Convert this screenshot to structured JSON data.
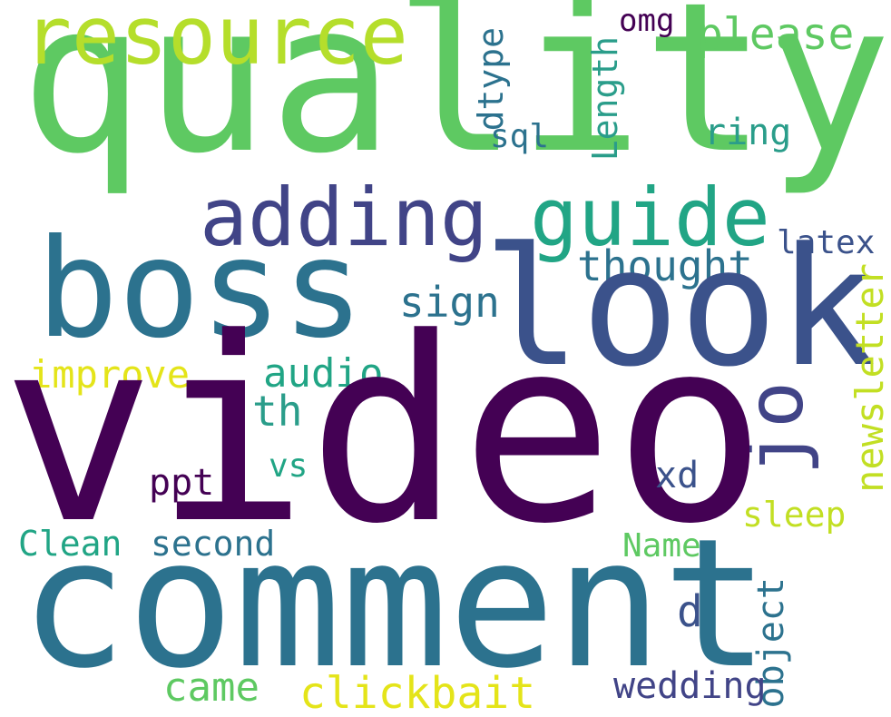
{
  "words": {
    "quality": {
      "text": "quality",
      "color": "#5ec962"
    },
    "video": {
      "text": "video",
      "color": "#440154"
    },
    "comment": {
      "text": "comment",
      "color": "#2c728e"
    },
    "boss": {
      "text": "boss",
      "color": "#2c728e"
    },
    "look": {
      "text": "look",
      "color": "#3b528b"
    },
    "resource": {
      "text": "resource",
      "color": "#b5de2b"
    },
    "adding": {
      "text": "adding",
      "color": "#414487"
    },
    "guide": {
      "text": "guide",
      "color": "#21a585"
    },
    "thought": {
      "text": "thought",
      "color": "#2c728e"
    },
    "sign": {
      "text": "sign",
      "color": "#2c728e"
    },
    "improve": {
      "text": "improve",
      "color": "#e4e419"
    },
    "audio": {
      "text": "audio",
      "color": "#21a585"
    },
    "th": {
      "text": "th",
      "color": "#2a9d8a"
    },
    "jo": {
      "text": "jo",
      "color": "#414487"
    },
    "newsletter": {
      "text": "newsletter",
      "color": "#c2df23"
    },
    "please": {
      "text": "please",
      "color": "#5ec962"
    },
    "omg": {
      "text": "omg",
      "color": "#440154"
    },
    "dtype": {
      "text": "dtype",
      "color": "#2c728e"
    },
    "Length": {
      "text": "Length",
      "color": "#2a9d8a"
    },
    "sql": {
      "text": "sql",
      "color": "#2c728e"
    },
    "ring": {
      "text": "ring",
      "color": "#2a9d8a"
    },
    "latex": {
      "text": "latex",
      "color": "#3b528b"
    },
    "vs": {
      "text": "vs",
      "color": "#21a585"
    },
    "ppt": {
      "text": "ppt",
      "color": "#440154"
    },
    "xd": {
      "text": "xd",
      "color": "#3b528b"
    },
    "sleep": {
      "text": "sleep",
      "color": "#c2df23"
    },
    "Clean": {
      "text": "Clean",
      "color": "#21a585"
    },
    "second": {
      "text": "second",
      "color": "#2c728e"
    },
    "Name": {
      "text": "Name",
      "color": "#5ec962"
    },
    "d": {
      "text": "d",
      "color": "#3b528b"
    },
    "object": {
      "text": "object",
      "color": "#2c728e"
    },
    "came": {
      "text": "came",
      "color": "#5ec962"
    },
    "clickbait": {
      "text": "clickbait",
      "color": "#e4e419"
    },
    "wedding": {
      "text": "wedding",
      "color": "#414487"
    }
  }
}
